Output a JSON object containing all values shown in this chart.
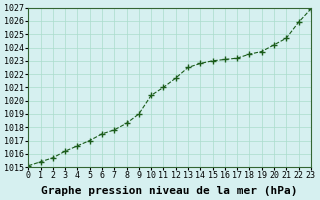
{
  "x": [
    0,
    1,
    2,
    3,
    4,
    5,
    6,
    7,
    8,
    9,
    10,
    11,
    12,
    13,
    14,
    15,
    16,
    17,
    18,
    19,
    20,
    21,
    22,
    23
  ],
  "y": [
    1015.1,
    1015.4,
    1015.7,
    1016.2,
    1016.6,
    1017.0,
    1017.5,
    1017.8,
    1018.3,
    1019.0,
    1020.4,
    1021.0,
    1021.7,
    1022.5,
    1022.8,
    1023.0,
    1023.1,
    1023.2,
    1023.5,
    1023.7,
    1024.2,
    1024.7,
    1025.9,
    1026.9
  ],
  "ylim": [
    1015,
    1027
  ],
  "xlim": [
    0,
    23
  ],
  "yticks": [
    1015,
    1016,
    1017,
    1018,
    1019,
    1020,
    1021,
    1022,
    1023,
    1024,
    1025,
    1026,
    1027
  ],
  "xticks": [
    0,
    1,
    2,
    3,
    4,
    5,
    6,
    7,
    8,
    9,
    10,
    11,
    12,
    13,
    14,
    15,
    16,
    17,
    18,
    19,
    20,
    21,
    22,
    23
  ],
  "line_color": "#1a5c1a",
  "marker": "+",
  "marker_size": 4,
  "line_width": 0.8,
  "linestyle": "--",
  "bg_color": "#d6f0f0",
  "grid_color": "#aaddcc",
  "xlabel": "Graphe pression niveau de la mer (hPa)",
  "xlabel_fontsize": 8,
  "tick_fontsize": 6
}
